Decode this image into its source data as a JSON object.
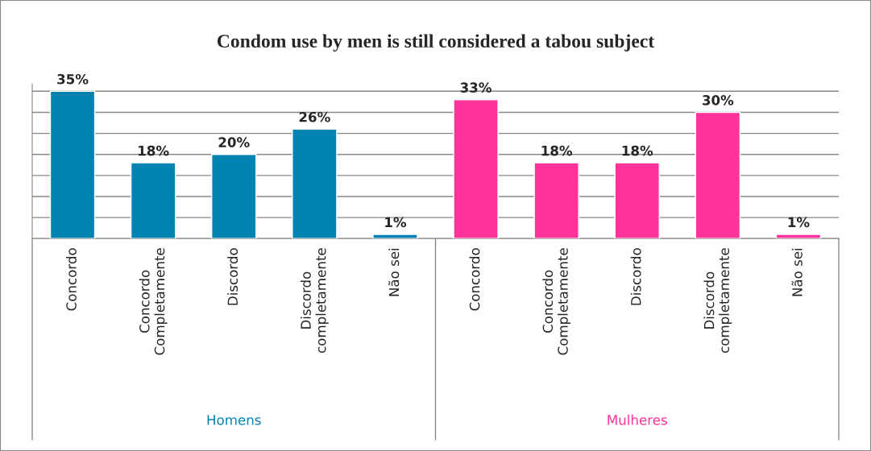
{
  "chart_data": {
    "type": "bar",
    "title": "Condom use by men is still considered a tabou subject",
    "categories": [
      "Concordo",
      "Concordo\nCompletamente",
      "Discordo",
      "Discordo\ncompletamente",
      "Não sei",
      "Concordo",
      "Concordo\nCompletamente",
      "Discordo",
      "Discordo\ncompletamente",
      "Não sei"
    ],
    "series": [
      {
        "name": "Homens",
        "color": "#0083b3",
        "values": [
          35,
          18,
          20,
          26,
          1,
          null,
          null,
          null,
          null,
          null
        ],
        "value_labels": [
          "35%",
          "18%",
          "20%",
          "26%",
          "1%",
          null,
          null,
          null,
          null,
          null
        ]
      },
      {
        "name": "Mulheres",
        "color": "#ff3399",
        "values": [
          null,
          null,
          null,
          null,
          null,
          33,
          18,
          18,
          30,
          1
        ],
        "value_labels": [
          null,
          null,
          null,
          null,
          null,
          "33%",
          "18%",
          "18%",
          "30%",
          "1%"
        ]
      }
    ],
    "grid": "y",
    "tick_labels": "x"
  }
}
